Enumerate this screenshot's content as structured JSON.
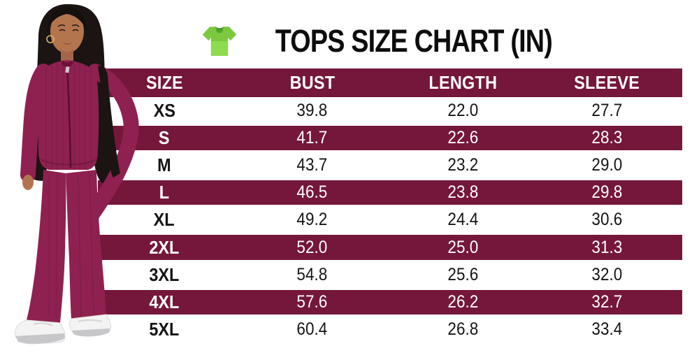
{
  "title": {
    "text": "TOPS SIZE CHART (IN)"
  },
  "colors": {
    "band_maroon": "#75163B",
    "band_text": "#FFFFFF",
    "body_text": "#141414",
    "outfit_maroon": "#8E2150",
    "tshirt_green": "#7CC840"
  },
  "icons": {
    "title_icon": "tshirt-icon"
  },
  "chart_data": {
    "type": "table",
    "title": "TOPS SIZE CHART (IN)",
    "columns": [
      "SIZE",
      "BUST",
      "LENGTH",
      "SLEEVE"
    ],
    "rows": [
      [
        "XS",
        "39.8",
        "22.0",
        "27.7"
      ],
      [
        "S",
        "41.7",
        "22.6",
        "28.3"
      ],
      [
        "M",
        "43.7",
        "23.2",
        "29.0"
      ],
      [
        "L",
        "46.5",
        "23.8",
        "29.8"
      ],
      [
        "XL",
        "49.2",
        "24.4",
        "30.6"
      ],
      [
        "2XL",
        "52.0",
        "25.0",
        "31.3"
      ],
      [
        "3XL",
        "54.8",
        "25.6",
        "32.0"
      ],
      [
        "4XL",
        "57.6",
        "26.2",
        "32.7"
      ],
      [
        "5XL",
        "60.4",
        "26.8",
        "33.4"
      ]
    ],
    "highlighted_rows": [
      "S",
      "L",
      "2XL",
      "4XL"
    ],
    "layout": {
      "header_background": "#75163B",
      "zebra": "alternating maroon/white starting white"
    }
  },
  "model": {
    "description": "Model wearing maroon ribbed zip-up top and flared pants with white sneakers"
  }
}
